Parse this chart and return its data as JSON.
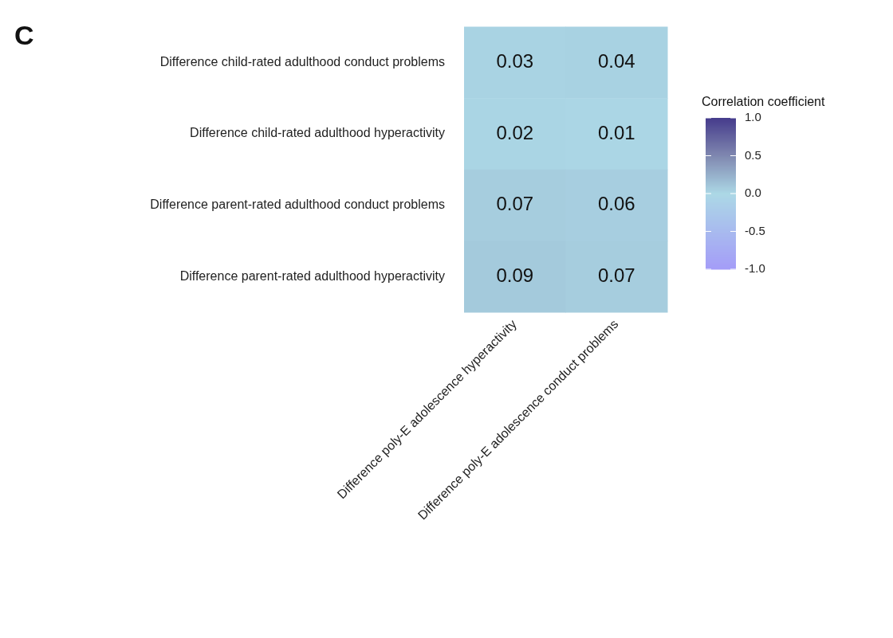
{
  "chart_data": {
    "type": "heatmap",
    "title": "C",
    "legend_title": "Correlation coefficient",
    "categories": [
      "Difference poly-E adolescence hyperactivity",
      "Difference poly-E adolescence conduct problems"
    ],
    "y_categories": [
      "Difference child-rated adulthood conduct problems",
      "Difference child-rated adulthood hyperactivity",
      "Difference parent-rated adulthood conduct problems",
      "Difference parent-rated adulthood hyperactivity"
    ],
    "cells": [
      [
        0.03,
        0.04
      ],
      [
        0.02,
        0.01
      ],
      [
        0.07,
        0.06
      ],
      [
        0.09,
        0.07
      ]
    ],
    "clim": [
      -1,
      1
    ],
    "cticks": [
      {
        "value": 1,
        "label": "1.0"
      },
      {
        "value": 0.5,
        "label": "0.5"
      },
      {
        "value": 0,
        "label": "0.0"
      },
      {
        "value": -0.5,
        "label": "-0.5"
      },
      {
        "value": -1,
        "label": "-1.0"
      }
    ],
    "data_labels": true
  }
}
